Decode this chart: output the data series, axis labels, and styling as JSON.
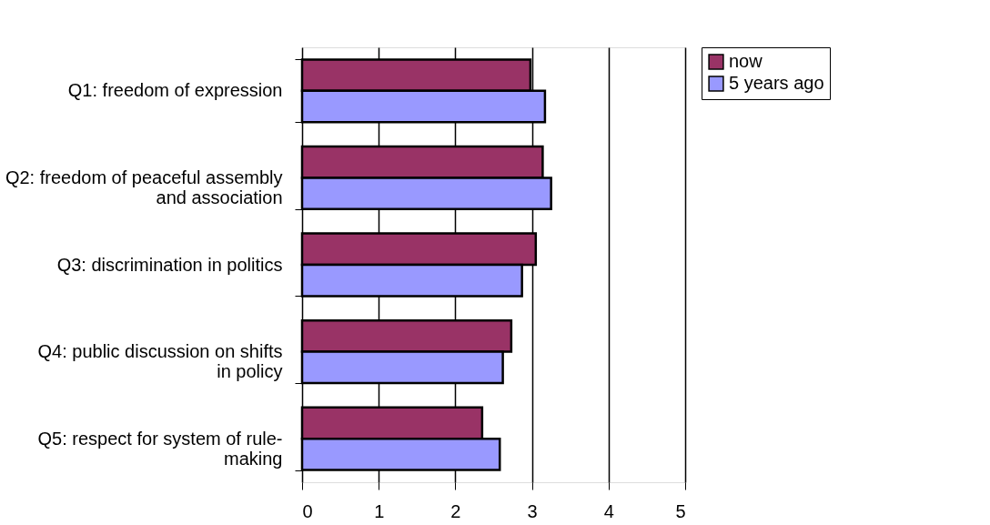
{
  "chart_data": {
    "type": "bar",
    "orientation": "horizontal",
    "categories": [
      "Q1: freedom of expression",
      "Q2: freedom of peaceful assembly and association",
      "Q3: discrimination in politics",
      "Q4: public discussion on shifts in policy",
      "Q5: respect for system of rule-making"
    ],
    "series": [
      {
        "name": "now",
        "color": "#993366",
        "values": [
          2.98,
          3.14,
          3.05,
          2.73,
          2.35
        ]
      },
      {
        "name": "5 years ago",
        "color": "#9999ff",
        "values": [
          3.17,
          3.25,
          2.87,
          2.62,
          2.58
        ]
      }
    ],
    "xlim": [
      0,
      5
    ],
    "xticks": [
      0,
      1,
      2,
      3,
      4,
      5
    ],
    "grid": "x",
    "legend": "right"
  }
}
